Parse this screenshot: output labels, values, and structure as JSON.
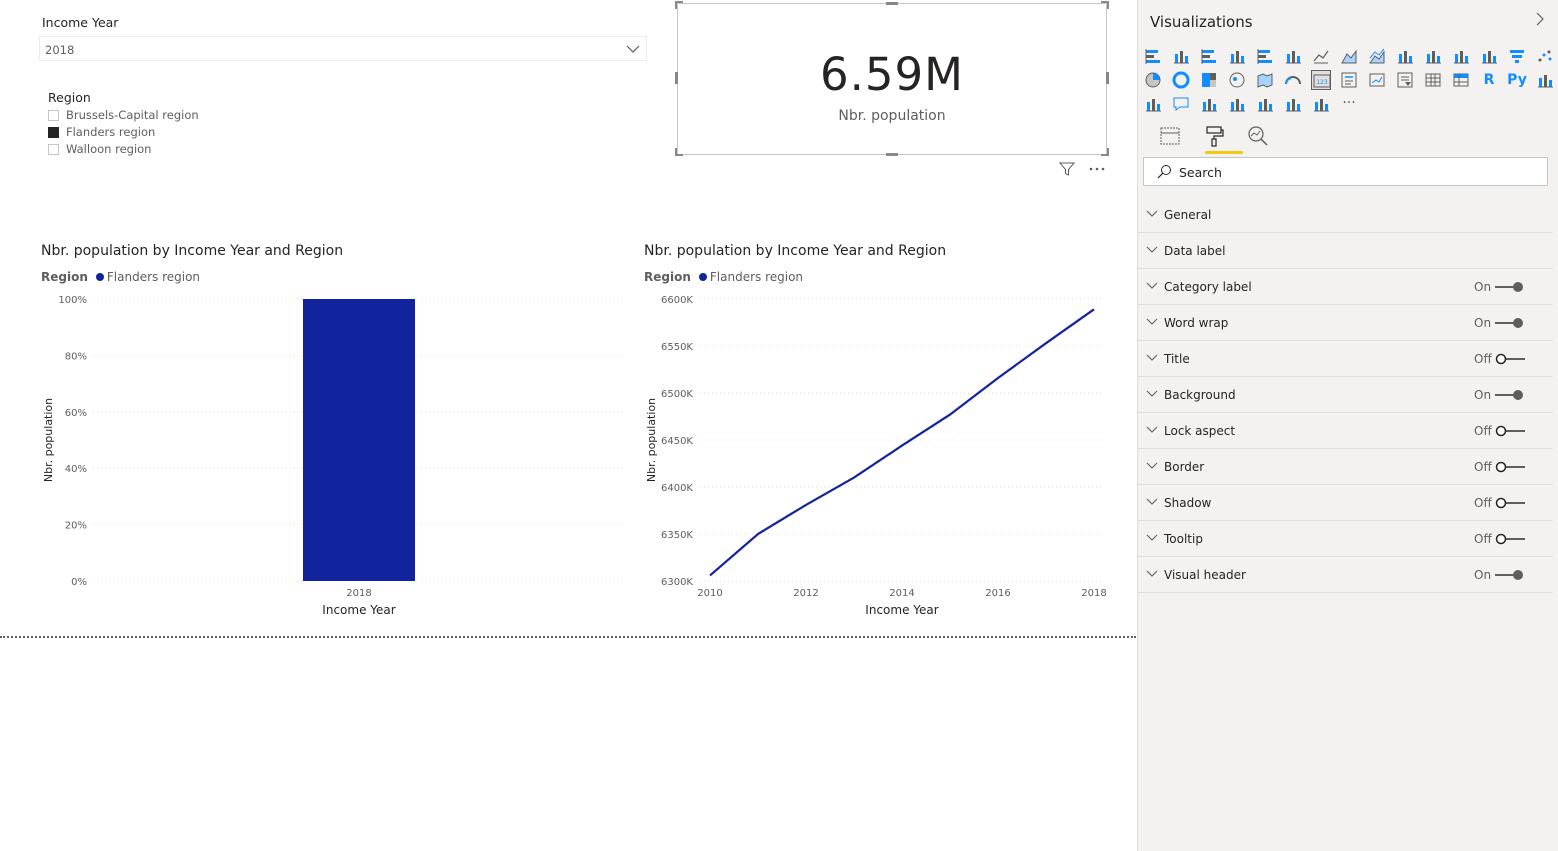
{
  "slicers": {
    "income_year": {
      "label": "Income Year",
      "selected": "2018"
    },
    "region": {
      "label": "Region",
      "items": [
        {
          "label": "Brussels-Capital region",
          "checked": false
        },
        {
          "label": "Flanders region",
          "checked": true
        },
        {
          "label": "Walloon region",
          "checked": false
        }
      ]
    }
  },
  "card": {
    "value": "6.59M",
    "label": "Nbr. population"
  },
  "chart_data": [
    {
      "type": "bar",
      "title": "Nbr. population by Income Year and Region",
      "legend_title": "Region",
      "legend": [
        {
          "name": "Flanders region",
          "color": "#12239e"
        }
      ],
      "categories": [
        "2018"
      ],
      "series": [
        {
          "name": "Flanders region",
          "values": [
            100
          ]
        }
      ],
      "xlabel": "Income Year",
      "ylabel": "Nbr. population",
      "ylim": [
        0,
        100
      ],
      "yticks": [
        "0%",
        "20%",
        "40%",
        "60%",
        "80%",
        "100%"
      ],
      "yticks_values": [
        0,
        20,
        40,
        60,
        80,
        100
      ]
    },
    {
      "type": "line",
      "title": "Nbr. population by Income Year and Region",
      "legend_title": "Region",
      "legend": [
        {
          "name": "Flanders region",
          "color": "#12239e"
        }
      ],
      "x": [
        2010,
        2011,
        2012,
        2013,
        2014,
        2015,
        2016,
        2017,
        2018
      ],
      "series": [
        {
          "name": "Flanders region",
          "values": [
            6306,
            6350,
            6381,
            6410,
            6444,
            6477,
            6516,
            6553,
            6589
          ]
        }
      ],
      "xlabel": "Income Year",
      "ylabel": "Nbr. population",
      "xlim": [
        2010,
        2018
      ],
      "xticks": [
        "2010",
        "2012",
        "2014",
        "2016",
        "2018"
      ],
      "xticks_values": [
        2010,
        2012,
        2014,
        2016,
        2018
      ],
      "ylim": [
        6300,
        6600
      ],
      "yticks": [
        "6300K",
        "6350K",
        "6400K",
        "6450K",
        "6500K",
        "6550K",
        "6600K"
      ],
      "yticks_values": [
        6300,
        6350,
        6400,
        6450,
        6500,
        6550,
        6600
      ]
    }
  ],
  "panel": {
    "title": "Visualizations",
    "search_placeholder": "Search",
    "sections": [
      {
        "label": "General",
        "state": "",
        "on": null
      },
      {
        "label": "Data label",
        "state": "",
        "on": null
      },
      {
        "label": "Category label",
        "state": "On",
        "on": true
      },
      {
        "label": "Word wrap",
        "state": "On",
        "on": true
      },
      {
        "label": "Title",
        "state": "Off",
        "on": false
      },
      {
        "label": "Background",
        "state": "On",
        "on": true
      },
      {
        "label": "Lock aspect",
        "state": "Off",
        "on": false
      },
      {
        "label": "Border",
        "state": "Off",
        "on": false
      },
      {
        "label": "Shadow",
        "state": "Off",
        "on": false
      },
      {
        "label": "Tooltip",
        "state": "Off",
        "on": false
      },
      {
        "label": "Visual header",
        "state": "On",
        "on": true
      }
    ],
    "viz_icons": [
      "stacked-bar-chart-icon",
      "stacked-column-chart-icon",
      "clustered-bar-chart-icon",
      "clustered-column-chart-icon",
      "100-stacked-bar-chart-icon",
      "100-stacked-column-chart-icon",
      "line-chart-icon",
      "area-chart-icon",
      "stacked-area-chart-icon",
      "line-and-stacked-column-chart-icon",
      "line-and-clustered-column-chart-icon",
      "ribbon-chart-icon",
      "waterfall-chart-icon",
      "funnel-chart-icon",
      "scatter-chart-icon",
      "pie-chart-icon",
      "donut-chart-icon",
      "treemap-icon",
      "map-icon",
      "filled-map-icon",
      "gauge-icon",
      "card-icon",
      "multi-row-card-icon",
      "kpi-icon",
      "slicer-icon",
      "table-icon",
      "matrix-icon",
      "r-visual-icon",
      "python-visual-icon",
      "key-influencers-icon",
      "decomposition-tree-icon",
      "qa-icon",
      "paginated-report-icon",
      "smart-narrative-icon",
      "arcgis-map-icon",
      "power-apps-icon",
      "power-automate-icon",
      "more-visuals-icon"
    ],
    "r_label": "R",
    "py_label": "Py",
    "more_label": "···",
    "tabs": [
      "fields-tab-icon",
      "format-tab-icon",
      "analytics-tab-icon"
    ]
  },
  "colors": {
    "series": "#12239e",
    "accent": "#f2c811"
  }
}
